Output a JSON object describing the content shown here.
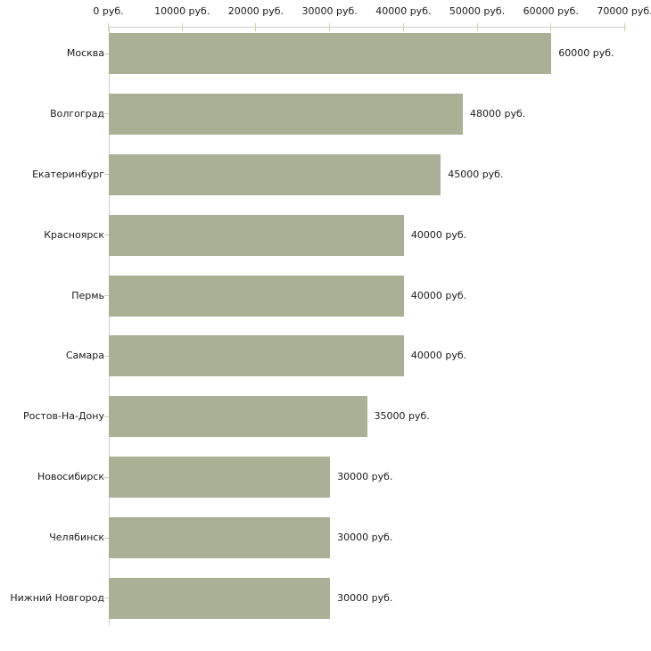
{
  "chart_data": {
    "type": "bar",
    "orientation": "horizontal",
    "title": "",
    "xlabel": "",
    "ylabel": "",
    "xlim": [
      0,
      70000
    ],
    "grid": false,
    "legend": false,
    "x_tick_labels": [
      "0 руб.",
      "10000 руб.",
      "20000 руб.",
      "30000 руб.",
      "40000 руб.",
      "50000 руб.",
      "60000 руб.",
      "70000 руб."
    ],
    "x_tick_values": [
      0,
      10000,
      20000,
      30000,
      40000,
      50000,
      60000,
      70000
    ],
    "categories": [
      "Москва",
      "Волгоград",
      "Екатеринбург",
      "Красноярск",
      "Пермь",
      "Самара",
      "Ростов-На-Дону",
      "Новосибирск",
      "Челябинск",
      "Нижний Новгород"
    ],
    "values": [
      60000,
      48000,
      45000,
      40000,
      40000,
      40000,
      35000,
      30000,
      30000,
      30000
    ],
    "value_labels": [
      "60000 руб.",
      "48000 руб.",
      "45000 руб.",
      "40000 руб.",
      "40000 руб.",
      "40000 руб.",
      "35000 руб.",
      "30000 руб.",
      "30000 руб.",
      "30000 руб."
    ],
    "colors": {
      "bar": "#aab096",
      "axis_line": "#cccccc",
      "tick_mark": "#d2cfaa",
      "text": "#1a1a1a",
      "background": "#ffffff"
    }
  }
}
